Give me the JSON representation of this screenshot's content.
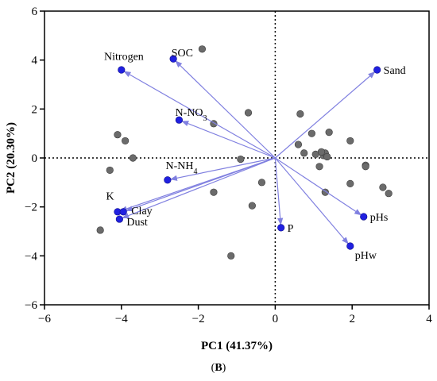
{
  "chart_data": {
    "type": "scatter",
    "xlabel": "PC1 (41.37%)",
    "ylabel": "PC2 (20.30%)",
    "xlim": [
      -6,
      4
    ],
    "ylim": [
      -6,
      6
    ],
    "xticks": [
      -6,
      -4,
      -2,
      0,
      2,
      4
    ],
    "yticks": [
      -6,
      -4,
      -2,
      0,
      2,
      4,
      6
    ],
    "xtick_labels": [
      "−6",
      "−4",
      "−2",
      "0",
      "2",
      "4"
    ],
    "ytick_labels": [
      "−6",
      "−4",
      "−2",
      "0",
      "2",
      "4",
      "6"
    ],
    "reference_lines": "dotted lines at x = 0 and y = 0",
    "grid": false,
    "scores": {
      "color": "#6b6b6b",
      "points": [
        [
          -1.9,
          4.45
        ],
        [
          -0.7,
          1.85
        ],
        [
          -1.6,
          1.4
        ],
        [
          -4.1,
          0.95
        ],
        [
          -3.9,
          0.7
        ],
        [
          -3.7,
          0.0
        ],
        [
          -4.3,
          -0.5
        ],
        [
          -0.9,
          -0.05
        ],
        [
          -1.6,
          -1.4
        ],
        [
          -0.35,
          -1.0
        ],
        [
          -0.6,
          -1.95
        ],
        [
          -4.55,
          -2.95
        ],
        [
          -1.15,
          -4.0
        ],
        [
          0.6,
          0.55
        ],
        [
          0.65,
          1.8
        ],
        [
          0.95,
          1.0
        ],
        [
          1.4,
          1.05
        ],
        [
          1.95,
          0.7
        ],
        [
          0.75,
          0.2
        ],
        [
          1.05,
          0.15
        ],
        [
          1.25,
          0.1
        ],
        [
          1.3,
          0.2
        ],
        [
          1.2,
          0.25
        ],
        [
          1.35,
          0.05
        ],
        [
          2.35,
          -0.3
        ],
        [
          2.35,
          -0.35
        ],
        [
          1.95,
          -1.05
        ],
        [
          2.8,
          -1.2
        ],
        [
          2.95,
          -1.45
        ],
        [
          1.3,
          -1.4
        ],
        [
          1.15,
          -0.35
        ]
      ]
    },
    "loadings": {
      "color": "#2020e0",
      "arrow_color": "#8080e0",
      "variables": [
        {
          "name": "SOC",
          "x": -2.65,
          "y": 4.05,
          "label": "SOC"
        },
        {
          "name": "Nitrogen",
          "x": -4.0,
          "y": 3.6,
          "label": "Nitrogen"
        },
        {
          "name": "Sand",
          "x": 2.65,
          "y": 3.6,
          "label": "Sand"
        },
        {
          "name": "N-NO3",
          "x": -2.5,
          "y": 1.55,
          "label_main": "N-NO",
          "label_sub": "3"
        },
        {
          "name": "N-NH4",
          "x": -2.8,
          "y": -0.9,
          "label_main": "N-NH",
          "label_sub": "4"
        },
        {
          "name": "K",
          "x": -4.1,
          "y": -2.2,
          "label": "K"
        },
        {
          "name": "Clay",
          "x": -3.95,
          "y": -2.2,
          "label": "Clay"
        },
        {
          "name": "Dust",
          "x": -4.05,
          "y": -2.5,
          "label": "Dust"
        },
        {
          "name": "P",
          "x": 0.15,
          "y": -2.85,
          "label": "P"
        },
        {
          "name": "pHs",
          "x": 2.3,
          "y": -2.4,
          "label": "pHs"
        },
        {
          "name": "pHw",
          "x": 1.95,
          "y": -3.6,
          "label": "pHw"
        }
      ]
    }
  },
  "panel": {
    "open": "(",
    "letter": "B",
    "close": ")"
  }
}
